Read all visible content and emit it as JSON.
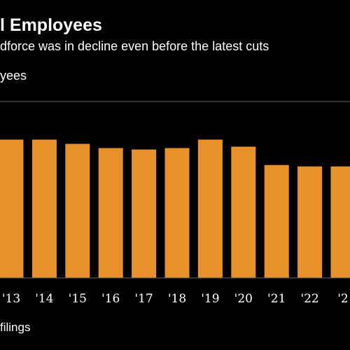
{
  "chart_data": {
    "type": "bar",
    "title": "l Employees",
    "subtitle": "dforce was in decline even before the latest cuts",
    "ylabel": "yees",
    "source": "filings",
    "categories": [
      "'13",
      "'14",
      "'15",
      "'16",
      "'17",
      "'18",
      "'19",
      "'20",
      "'21",
      "'22",
      "'2"
    ],
    "values": [
      98,
      98,
      95,
      92,
      91,
      92,
      98,
      93,
      80,
      79,
      79
    ],
    "ylim": [
      0,
      125
    ],
    "grid": false,
    "legend": "none",
    "bar_color": "#E8902A",
    "background": "#000000",
    "text_color": "#ffffff",
    "axis_color": "#666666"
  }
}
